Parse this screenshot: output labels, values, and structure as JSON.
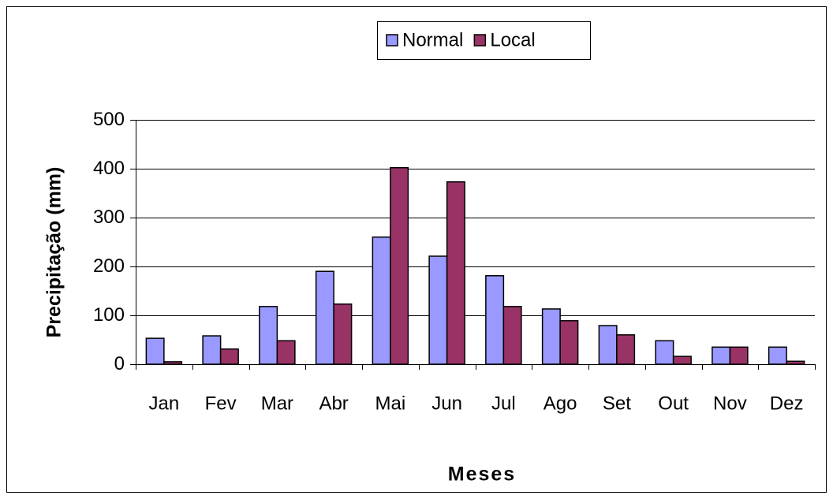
{
  "chart_data": {
    "type": "bar",
    "ylabel": "Precipitação (mm)",
    "xlabel": "Meses",
    "categories": [
      "Jan",
      "Fev",
      "Mar",
      "Abr",
      "Mai",
      "Jun",
      "Jul",
      "Ago",
      "Set",
      "Out",
      "Nov",
      "Dez"
    ],
    "series": [
      {
        "name": "Normal",
        "color": "#9999ff",
        "values": [
          53,
          58,
          118,
          190,
          260,
          221,
          181,
          113,
          79,
          48,
          35,
          35
        ]
      },
      {
        "name": "Local",
        "color": "#993366",
        "values": [
          5,
          31,
          48,
          123,
          402,
          373,
          118,
          89,
          60,
          16,
          35,
          6
        ]
      }
    ],
    "ylim": [
      0,
      500
    ],
    "yticks": [
      0,
      100,
      200,
      300,
      400,
      500
    ],
    "grid": true,
    "legend": "top"
  }
}
